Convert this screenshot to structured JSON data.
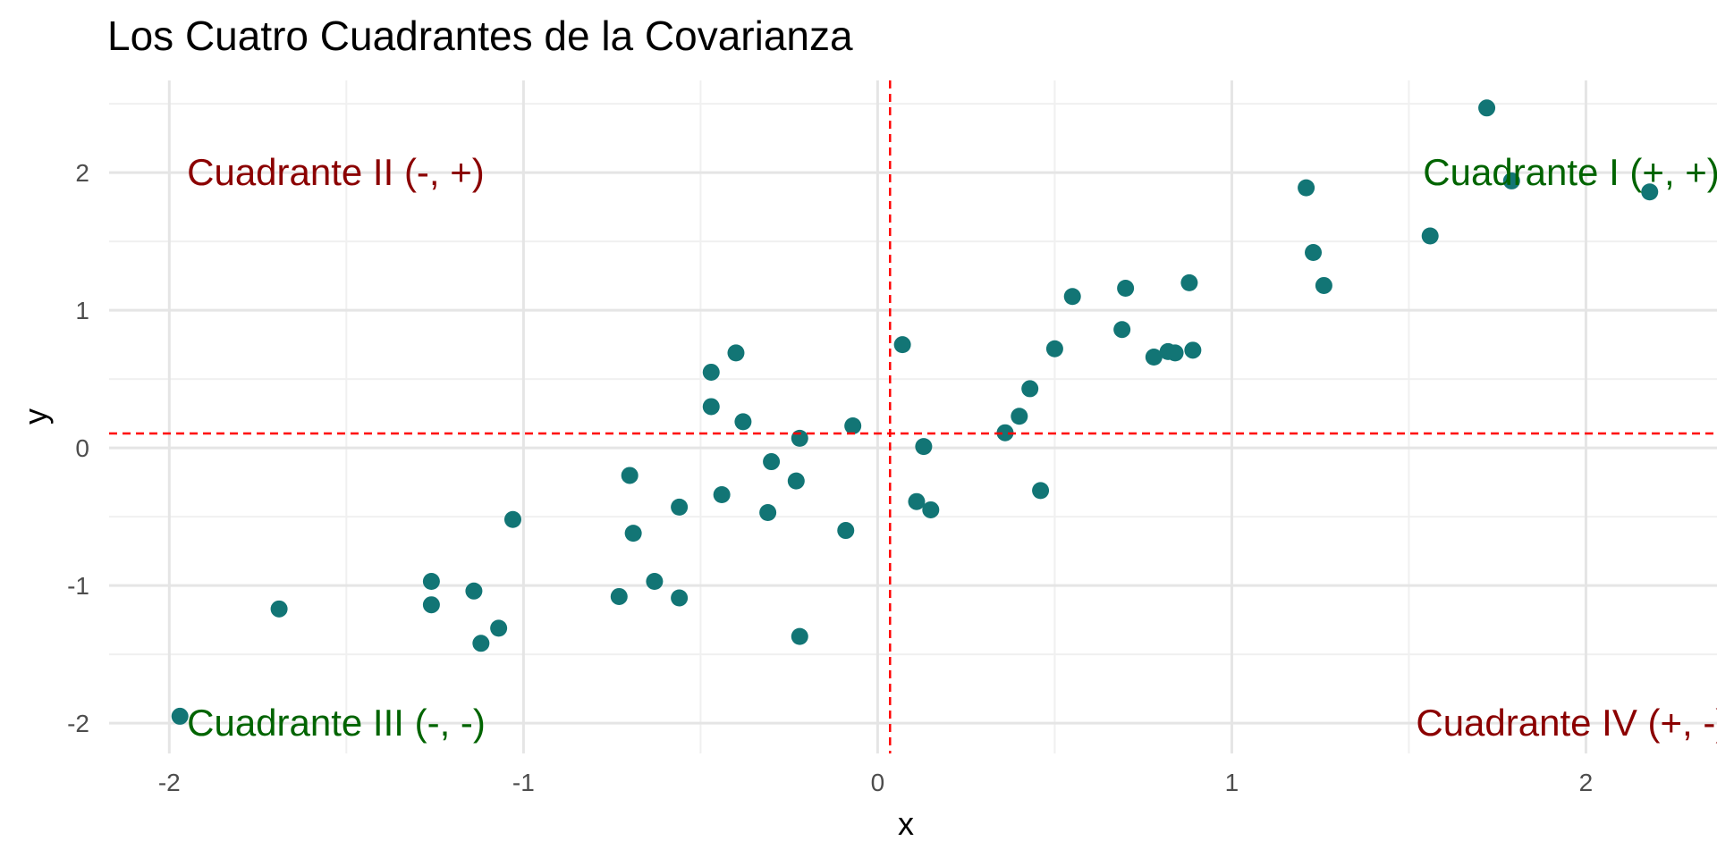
{
  "chart_data": {
    "type": "scatter",
    "title": "Los Cuatro Cuadrantes de la Covarianza",
    "xlabel": "x",
    "ylabel": "y",
    "xlim": [
      -2.17,
      2.37
    ],
    "ylim": [
      -2.22,
      2.67
    ],
    "xticks": [
      -2,
      -1,
      0,
      1,
      2
    ],
    "xtick_labels": [
      "-2",
      "-1",
      "0",
      "1",
      "2"
    ],
    "yticks": [
      -2,
      -1,
      0,
      1,
      2
    ],
    "ytick_labels": [
      "-2",
      "-1",
      "0",
      "1",
      "2"
    ],
    "grid": true,
    "point_color": "#127575",
    "mean_x": 0.035,
    "mean_y": 0.105,
    "mean_line_color": "#ff0000",
    "points": [
      {
        "x": -1.97,
        "y": -1.95
      },
      {
        "x": -1.69,
        "y": -1.17
      },
      {
        "x": -1.26,
        "y": -0.97
      },
      {
        "x": -1.26,
        "y": -1.14
      },
      {
        "x": -1.14,
        "y": -1.04
      },
      {
        "x": -1.12,
        "y": -1.42
      },
      {
        "x": -1.07,
        "y": -1.31
      },
      {
        "x": -1.03,
        "y": -0.52
      },
      {
        "x": -0.73,
        "y": -1.08
      },
      {
        "x": -0.7,
        "y": -0.2
      },
      {
        "x": -0.69,
        "y": -0.62
      },
      {
        "x": -0.63,
        "y": -0.97
      },
      {
        "x": -0.56,
        "y": -0.43
      },
      {
        "x": -0.56,
        "y": -1.09
      },
      {
        "x": -0.47,
        "y": 0.55
      },
      {
        "x": -0.47,
        "y": 0.3
      },
      {
        "x": -0.44,
        "y": -0.34
      },
      {
        "x": -0.4,
        "y": 0.69
      },
      {
        "x": -0.38,
        "y": 0.19
      },
      {
        "x": -0.31,
        "y": -0.47
      },
      {
        "x": -0.3,
        "y": -0.1
      },
      {
        "x": -0.23,
        "y": -0.24
      },
      {
        "x": -0.22,
        "y": 0.07
      },
      {
        "x": -0.22,
        "y": -1.37
      },
      {
        "x": -0.09,
        "y": -0.6
      },
      {
        "x": -0.07,
        "y": 0.16
      },
      {
        "x": 0.07,
        "y": 0.75
      },
      {
        "x": 0.11,
        "y": -0.39
      },
      {
        "x": 0.13,
        "y": 0.01
      },
      {
        "x": 0.15,
        "y": -0.45
      },
      {
        "x": 0.36,
        "y": 0.11
      },
      {
        "x": 0.4,
        "y": 0.23
      },
      {
        "x": 0.43,
        "y": 0.43
      },
      {
        "x": 0.46,
        "y": -0.31
      },
      {
        "x": 0.5,
        "y": 0.72
      },
      {
        "x": 0.55,
        "y": 1.1
      },
      {
        "x": 0.69,
        "y": 0.86
      },
      {
        "x": 0.7,
        "y": 1.16
      },
      {
        "x": 0.78,
        "y": 0.66
      },
      {
        "x": 0.82,
        "y": 0.7
      },
      {
        "x": 0.84,
        "y": 0.69
      },
      {
        "x": 0.88,
        "y": 1.2
      },
      {
        "x": 0.89,
        "y": 0.71
      },
      {
        "x": 1.21,
        "y": 1.89
      },
      {
        "x": 1.23,
        "y": 1.42
      },
      {
        "x": 1.26,
        "y": 1.18
      },
      {
        "x": 1.56,
        "y": 1.54
      },
      {
        "x": 1.72,
        "y": 2.47
      },
      {
        "x": 1.79,
        "y": 1.94
      },
      {
        "x": 2.18,
        "y": 1.86
      }
    ],
    "annotations": [
      {
        "text": "Cuadrante I (+, +)",
        "x": 1.54,
        "y": 2.0,
        "anchor": "start",
        "color": "#006400"
      },
      {
        "text": "Cuadrante II (-, +)",
        "x": -1.95,
        "y": 2.0,
        "anchor": "start",
        "color": "#8b0000"
      },
      {
        "text": "Cuadrante III (-, -)",
        "x": -1.95,
        "y": -2.0,
        "anchor": "start",
        "color": "#006400"
      },
      {
        "text": "Cuadrante IV (+, -)",
        "x": 1.52,
        "y": -2.0,
        "anchor": "start",
        "color": "#8b0000"
      }
    ]
  }
}
